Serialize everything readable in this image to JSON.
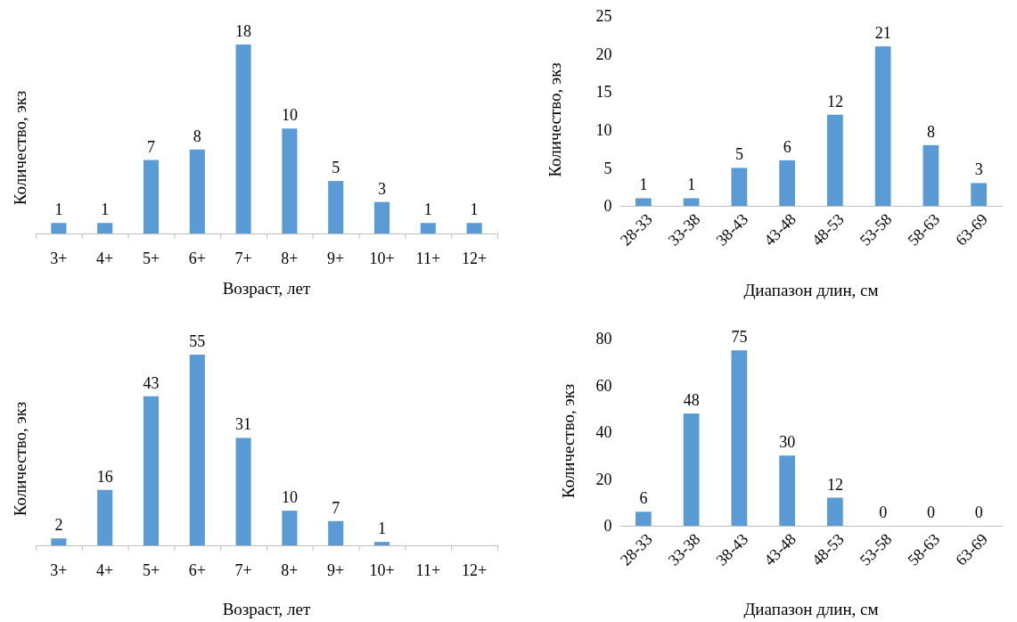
{
  "chart_data": [
    {
      "type": "bar",
      "xlabel": "Возраст, лет",
      "ylabel": "Количество, экз",
      "categories": [
        "3+",
        "4+",
        "5+",
        "6+",
        "7+",
        "8+",
        "9+",
        "10+",
        "11+",
        "12+"
      ],
      "values": [
        1,
        1,
        7,
        8,
        18,
        10,
        5,
        3,
        1,
        1
      ],
      "color": "#5b9bd5",
      "data_labels": true,
      "tick_labels": "x"
    },
    {
      "type": "bar",
      "xlabel": "Диапазон длин, см",
      "ylabel": "Количество, экз",
      "categories": [
        "28-33",
        "33-38",
        "38-43",
        "43-48",
        "48-53",
        "53-58",
        "58-63",
        "63-69"
      ],
      "values": [
        1,
        1,
        5,
        6,
        12,
        21,
        8,
        3
      ],
      "color": "#5b9bd5",
      "data_labels": true,
      "ylim": [
        0,
        25
      ],
      "yticks": [
        0,
        5,
        10,
        15,
        20,
        25
      ]
    },
    {
      "type": "bar",
      "xlabel": "Возраст, лет",
      "ylabel": "Количество, экз",
      "categories": [
        "3+",
        "4+",
        "5+",
        "6+",
        "7+",
        "8+",
        "9+",
        "10+",
        "11+",
        "12+"
      ],
      "values": [
        2,
        16,
        43,
        55,
        31,
        10,
        7,
        1,
        null,
        null
      ],
      "color": "#5b9bd5",
      "data_labels": true,
      "tick_labels": "x"
    },
    {
      "type": "bar",
      "xlabel": "Диапазон длин, см",
      "ylabel": "Количество, экз",
      "categories": [
        "28-33",
        "33-38",
        "38-43",
        "43-48",
        "48-53",
        "53-58",
        "58-63",
        "63-69"
      ],
      "values": [
        6,
        48,
        75,
        30,
        12,
        0,
        0,
        0
      ],
      "color": "#5b9bd5",
      "data_labels": true,
      "ylim": [
        0,
        80
      ],
      "yticks": [
        0,
        20,
        40,
        60,
        80
      ]
    }
  ]
}
